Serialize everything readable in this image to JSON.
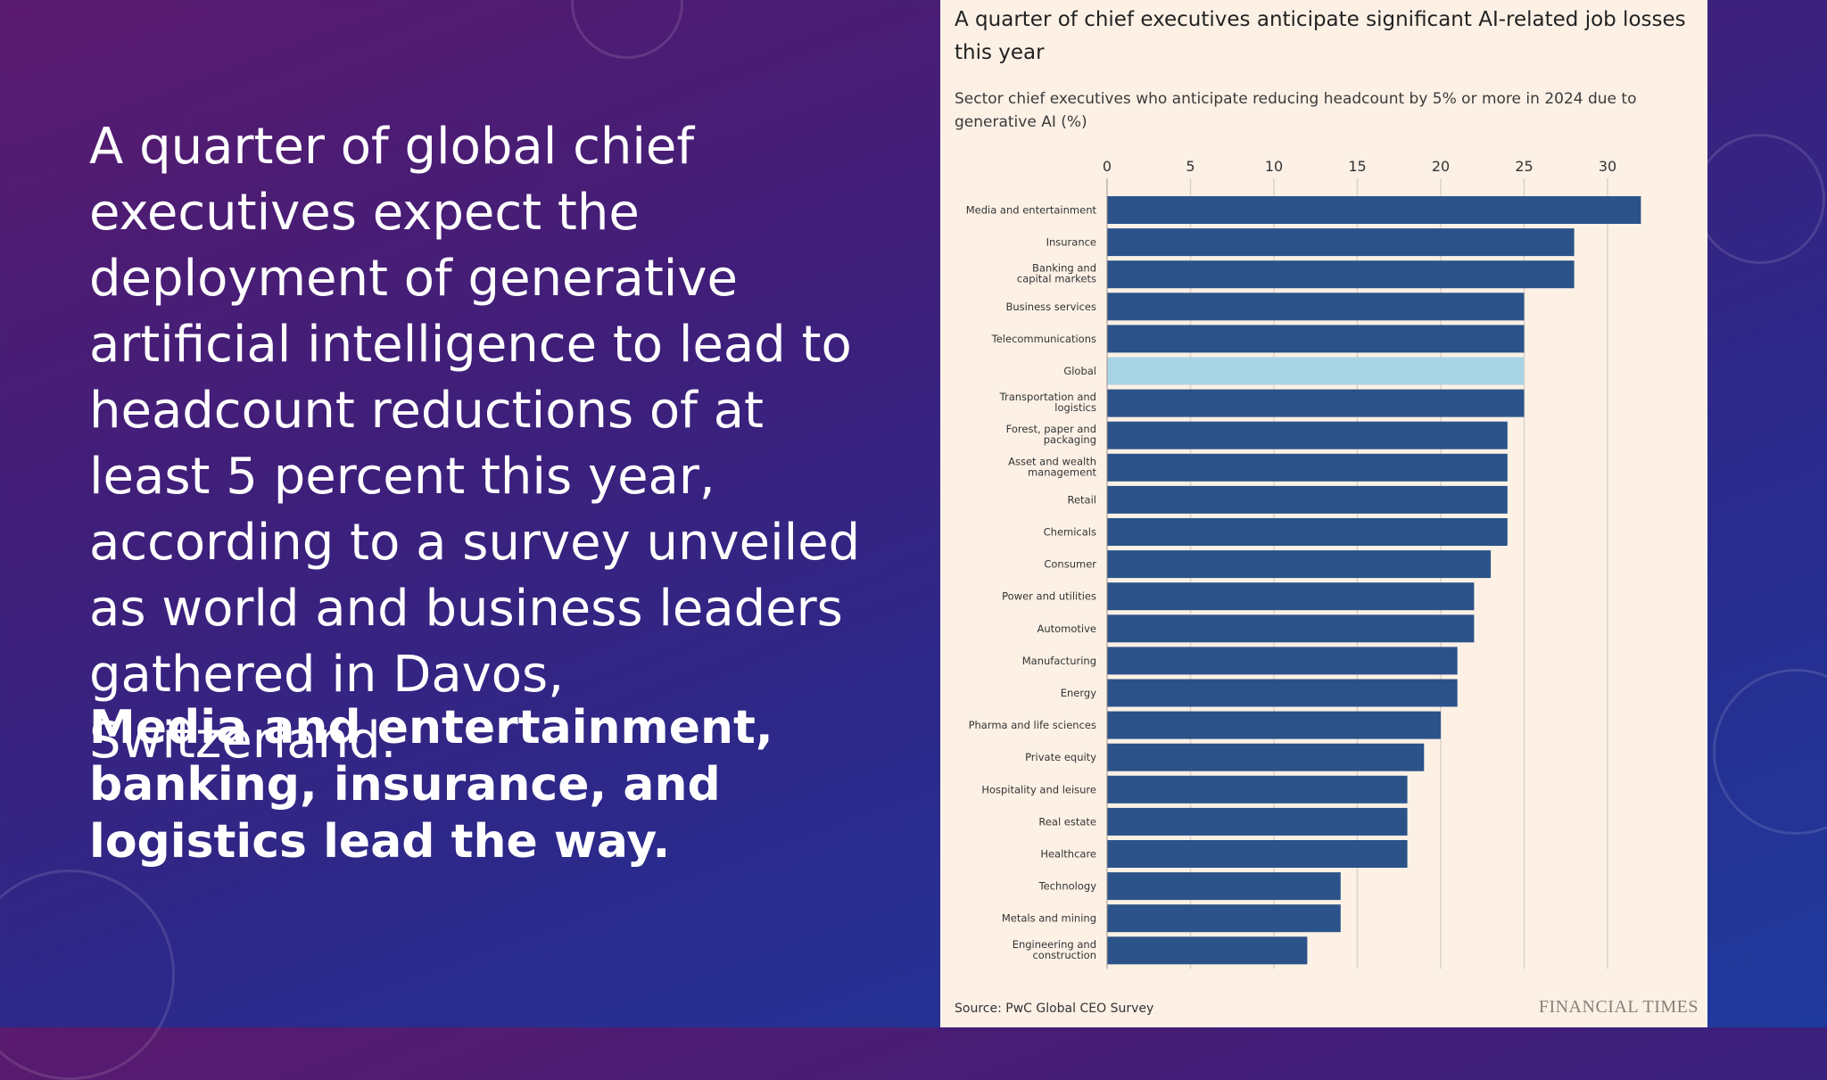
{
  "slide": {
    "body_text": "A quarter of global chief executives expect the deployment of generative artificial intelligence to lead to headcount reductions of at least 5 percent this year, according to a survey unveiled as world and business leaders gathered in Davos, Switzerland.",
    "bold_text": "Media and entertainment, banking, insurance, and logistics lead the way."
  },
  "colors": {
    "bar": "#2b5389",
    "highlight": "#a8d4e6",
    "grid": "#dcd2ca",
    "tick_text": "#333333"
  },
  "chart_data": {
    "type": "bar",
    "orientation": "horizontal",
    "title": "A quarter of chief executives anticipate significant AI-related job losses this year",
    "subtitle": "Sector chief executives who anticipate reducing headcount by 5% or more in 2024 due to generative AI (%)",
    "categories": [
      "Media and entertainment",
      "Insurance",
      "Banking and capital markets",
      "Business services",
      "Telecommunications",
      "Global",
      "Transportation and logistics",
      "Forest, paper and packaging",
      "Asset and wealth management",
      "Retail",
      "Chemicals",
      "Consumer",
      "Power and utilities",
      "Automotive",
      "Manufacturing",
      "Energy",
      "Pharma and life sciences",
      "Private equity",
      "Hospitality and leisure",
      "Real estate",
      "Healthcare",
      "Technology",
      "Metals and mining",
      "Engineering and construction"
    ],
    "values": [
      32,
      28,
      28,
      25,
      25,
      25,
      25,
      24,
      24,
      24,
      24,
      23,
      22,
      22,
      21,
      21,
      20,
      19,
      18,
      18,
      18,
      14,
      14,
      12
    ],
    "highlight_category": "Global",
    "xlim": [
      0,
      33
    ],
    "xticks": [
      0,
      5,
      10,
      15,
      20,
      25,
      30
    ],
    "grid": true,
    "source": "Source: PwC Global CEO Survey",
    "brand": "FINANCIAL TIMES"
  }
}
